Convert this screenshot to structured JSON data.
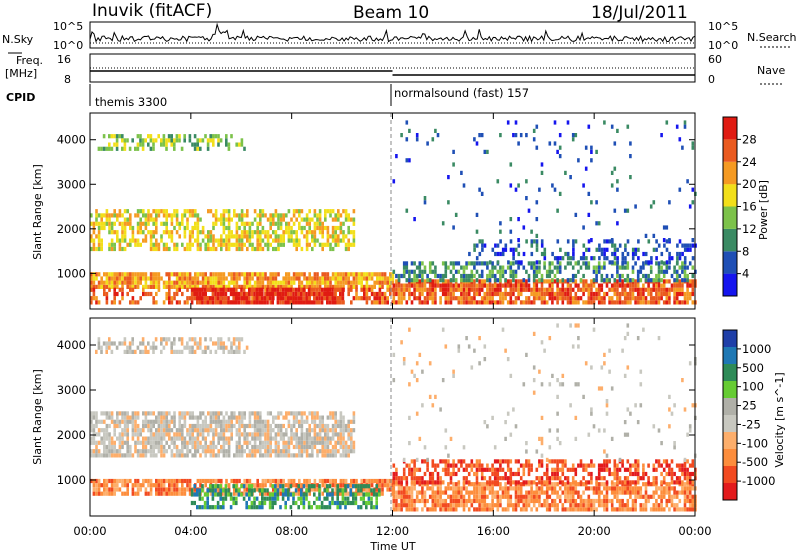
{
  "header": {
    "title": "Inuvik (fitACF)",
    "beam": "Beam 10",
    "date": "18/Jul/2011"
  },
  "strip_labels": {
    "nsky": "N.Sky",
    "nsearch": "N.Search",
    "freq_line1": "Freq.",
    "freq_line2": "[MHz]",
    "nave": "Nave",
    "cpid": "CPID"
  },
  "strip_ticks": {
    "nsky_top": "10^5",
    "nsky_bottom": "10^0",
    "nsearch_top": "10^5",
    "nsearch_bottom": "10^0",
    "freq_top": "16",
    "freq_bottom": "8",
    "nave_top": "60",
    "nave_bottom": "0"
  },
  "cpid_labels": [
    {
      "label": "themis 3300",
      "start_hour": 0
    },
    {
      "label": "normalsound (fast) 157",
      "start_hour": 12
    }
  ],
  "axes": {
    "xlabel": "Time UT",
    "ylabel_top": "Slant Range [km]",
    "ylabel_bottom": "Slant Range [km]",
    "x_ticks": [
      "00:00",
      "04:00",
      "08:00",
      "12:00",
      "16:00",
      "20:00",
      "00:00"
    ],
    "y_ticks": [
      "1000",
      "2000",
      "3000",
      "4000"
    ]
  },
  "colors": {
    "power": [
      "#1515ee",
      "#1f4fb5",
      "#3a8a63",
      "#7cc24a",
      "#f2df1a",
      "#f59a22",
      "#ea5a1f",
      "#e01b12"
    ],
    "velocity": [
      "#e31a1c",
      "#f24a20",
      "#fd8d3c",
      "#fdae6b",
      "#c8c8c0",
      "#b0b0a8",
      "#66cc33",
      "#2e8b57",
      "#1f78b4",
      "#1f3fa8"
    ]
  },
  "chart_data": [
    {
      "type": "line",
      "title": "N.Sky / N.Search",
      "x_range_hours": [
        0,
        24
      ],
      "ylim_log": [
        0,
        5
      ],
      "note_values": "noise level fluctuates near the bottom with spikes around 05:00"
    },
    {
      "type": "heatmap",
      "ylabel": "Slant Range [km]",
      "xlabel": "",
      "x_range_hours": [
        0,
        24
      ],
      "ylim": [
        200,
        4600
      ],
      "colorbar": {
        "label": "Power [dB]",
        "ticks": [
          "4",
          "8",
          "12",
          "16",
          "20",
          "24",
          "28"
        ],
        "range": [
          0,
          30
        ]
      },
      "bands": [
        {
          "t0": 0.0,
          "t1": 12.0,
          "r0": 650,
          "r1": 1000,
          "level": 5,
          "density": 0.85
        },
        {
          "t0": 0.0,
          "t1": 12.0,
          "r0": 300,
          "r1": 650,
          "level": 6,
          "density": 0.45
        },
        {
          "t0": 4.0,
          "t1": 10.0,
          "r0": 300,
          "r1": 600,
          "level": 7,
          "density": 0.9
        },
        {
          "t0": 0.0,
          "t1": 10.5,
          "r0": 1500,
          "r1": 2400,
          "level": 4,
          "density": 0.6
        },
        {
          "t0": 0.2,
          "t1": 6.2,
          "r0": 3750,
          "r1": 4100,
          "level": 3,
          "density": 0.4
        },
        {
          "t0": 12.0,
          "t1": 24.0,
          "r0": 300,
          "r1": 800,
          "level": 6,
          "density": 0.8
        },
        {
          "t0": 12.0,
          "t1": 24.0,
          "r0": 800,
          "r1": 1200,
          "level": 2,
          "density": 0.5
        },
        {
          "t0": 15.0,
          "t1": 24.0,
          "r0": 1200,
          "r1": 1700,
          "level": 1,
          "density": 0.3
        },
        {
          "t0": 12.0,
          "t1": 24.0,
          "r0": 1700,
          "r1": 4400,
          "level": 1,
          "density": 0.04
        }
      ]
    },
    {
      "type": "heatmap",
      "ylabel": "Slant Range [km]",
      "xlabel": "Time UT",
      "x_range_hours": [
        0,
        24
      ],
      "ylim": [
        200,
        4600
      ],
      "colorbar": {
        "label": "Velocity [m s^-1]",
        "ticks": [
          "-1000",
          "-500",
          "-100",
          "-25",
          "25",
          "100",
          "500",
          "1000"
        ],
        "range": [
          -1200,
          1200
        ]
      },
      "bands": [
        {
          "t0": 0.0,
          "t1": 12.0,
          "r0": 650,
          "r1": 1000,
          "level": 2,
          "density": 0.8
        },
        {
          "t0": 4.0,
          "t1": 11.5,
          "r0": 350,
          "r1": 900,
          "level": 7,
          "density": 0.6
        },
        {
          "t0": 0.0,
          "t1": 10.5,
          "r0": 1500,
          "r1": 2500,
          "level": 4,
          "density": 0.75
        },
        {
          "t0": 0.2,
          "t1": 6.2,
          "r0": 3800,
          "r1": 4100,
          "level": 4,
          "density": 0.5
        },
        {
          "t0": 12.0,
          "t1": 24.0,
          "r0": 300,
          "r1": 900,
          "level": 2,
          "density": 0.75
        },
        {
          "t0": 12.0,
          "t1": 24.0,
          "r0": 900,
          "r1": 1400,
          "level": 1,
          "density": 0.55
        },
        {
          "t0": 12.0,
          "t1": 24.0,
          "r0": 1400,
          "r1": 4400,
          "level": 4,
          "density": 0.04
        }
      ]
    }
  ]
}
